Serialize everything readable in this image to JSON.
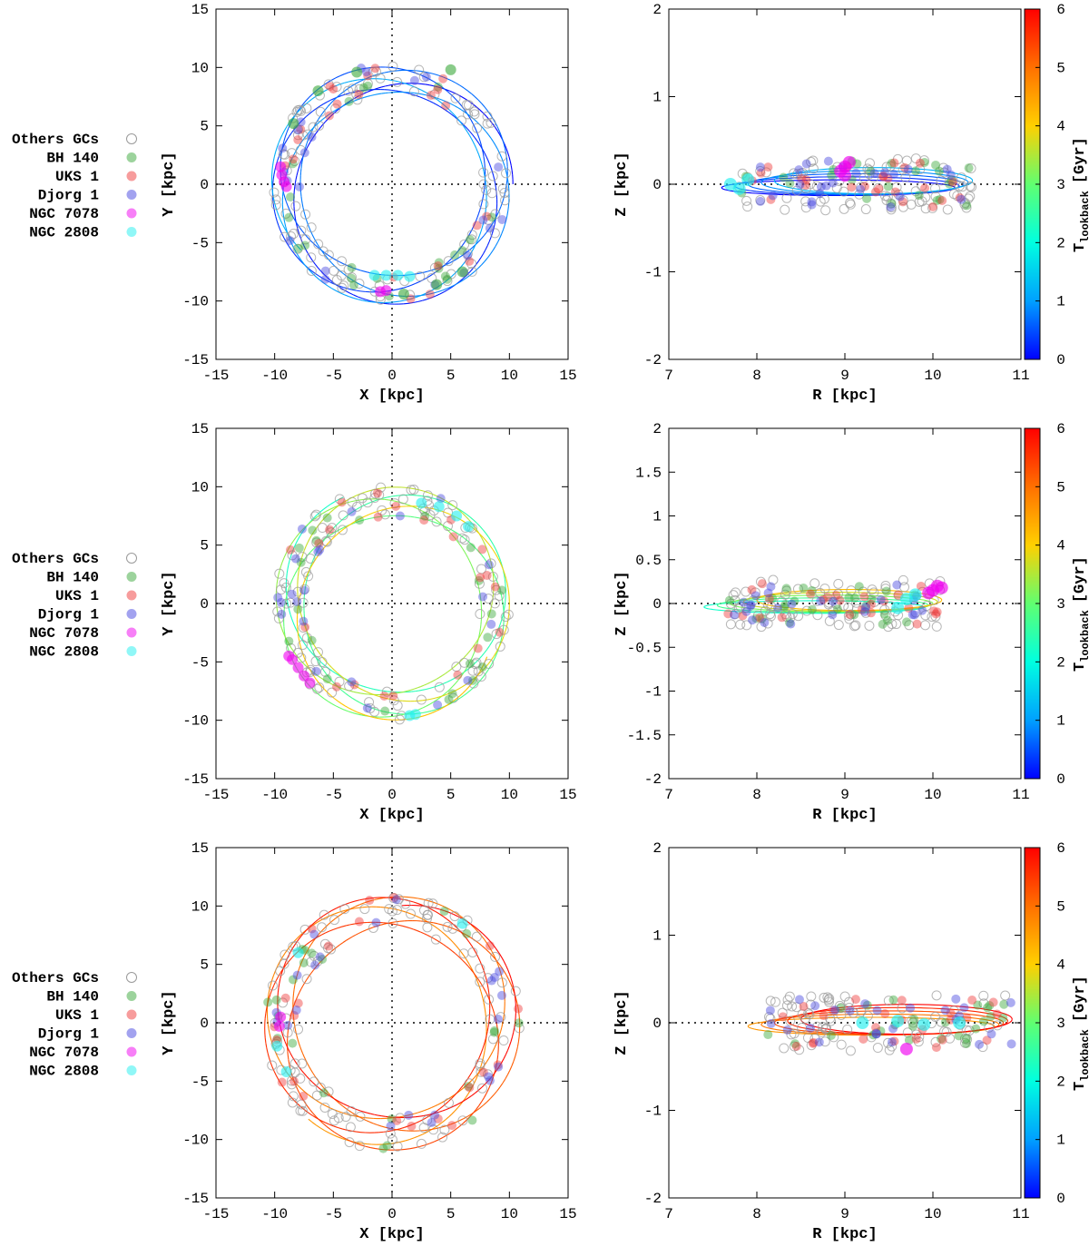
{
  "legend": [
    {
      "label": "Others GCs",
      "color": "#9a9a9a",
      "style": "open"
    },
    {
      "label": "BH 140",
      "color": "#3aa83a"
    },
    {
      "label": "UKS 1",
      "color": "#f03a3a"
    },
    {
      "label": "Djorg 1",
      "color": "#4646e0"
    },
    {
      "label": "NGC 7078",
      "color": "#f000f0"
    },
    {
      "label": "NGC 2808",
      "color": "#22f0f0"
    }
  ],
  "colorbar": {
    "label_main": "T",
    "label_sub": "lookback",
    "label_unit": "[Gyr]",
    "range": [
      0,
      6
    ],
    "ticks": [
      "0",
      "1",
      "2",
      "3",
      "4",
      "5",
      "6"
    ],
    "colors": [
      "#0000ff",
      "#00a0ff",
      "#00ffe0",
      "#60ff70",
      "#ffd000",
      "#ff7000",
      "#ff0000"
    ]
  },
  "chart_data": [
    {
      "type": "scatter",
      "panel": "xy",
      "row": 1,
      "title": "",
      "xlabel": "X [kpc]",
      "ylabel": "Y [kpc]",
      "xlim": [
        -15,
        15
      ],
      "ylim": [
        -15,
        15
      ],
      "xticks": [
        "-15",
        "-10",
        "-5",
        "0",
        "5",
        "10",
        "15"
      ],
      "yticks": [
        "-15",
        "-10",
        "-5",
        "0",
        "5",
        "10",
        "15"
      ],
      "orbit_tlookback": [
        0,
        1.2
      ],
      "orbit_radius_range": [
        7.8,
        10.3
      ],
      "clusters": [
        {
          "name": "NGC 7078",
          "points": [
            [
              -9.4,
              0.8
            ],
            [
              -9.5,
              1.5
            ],
            [
              -9.2,
              0.2
            ],
            [
              -9.0,
              -0.2
            ],
            [
              -1.0,
              -9.2
            ],
            [
              -0.5,
              -9.1
            ]
          ]
        },
        {
          "name": "NGC 2808",
          "points": [
            [
              -0.5,
              -7.8
            ],
            [
              0.5,
              -7.8
            ],
            [
              1.5,
              -7.9
            ],
            [
              -1.5,
              -7.8
            ]
          ]
        },
        {
          "name": "BH 140",
          "points": [
            [
              -8.4,
              5.2
            ],
            [
              -6.3,
              8.0
            ],
            [
              -3.0,
              9.6
            ],
            [
              5.0,
              9.8
            ],
            [
              1.0,
              -9.4
            ],
            [
              3.8,
              -8.6
            ],
            [
              6.0,
              -7.5
            ]
          ]
        }
      ]
    },
    {
      "type": "scatter",
      "panel": "rz",
      "row": 1,
      "title": "",
      "xlabel": "R [kpc]",
      "ylabel": "Z [kpc]",
      "xlim": [
        7,
        11
      ],
      "ylim": [
        -2,
        2
      ],
      "xticks": [
        "7",
        "8",
        "9",
        "10",
        "11"
      ],
      "yticks": [
        "-2",
        "-1",
        "0",
        "1",
        "2"
      ],
      "orbit_r_range": [
        7.8,
        10.45
      ],
      "orbit_z_amplitude": 0.15,
      "clusters": [
        {
          "name": "NGC 7078",
          "points": [
            [
              9.0,
              0.2
            ],
            [
              9.05,
              0.25
            ],
            [
              8.95,
              0.15
            ],
            [
              9.0,
              0.1
            ]
          ]
        },
        {
          "name": "NGC 2808",
          "points": [
            [
              7.7,
              0.0
            ],
            [
              7.8,
              -0.05
            ],
            [
              7.9,
              0.05
            ]
          ]
        }
      ]
    },
    {
      "type": "scatter",
      "panel": "xy",
      "row": 2,
      "title": "",
      "xlabel": "X [kpc]",
      "ylabel": "Y [kpc]",
      "xlim": [
        -15,
        15
      ],
      "ylim": [
        -15,
        15
      ],
      "xticks": [
        "-15",
        "-10",
        "-5",
        "0",
        "5",
        "10",
        "15"
      ],
      "yticks": [
        "-15",
        "-10",
        "-5",
        "0",
        "5",
        "10",
        "15"
      ],
      "orbit_tlookback": [
        2.2,
        4.2
      ],
      "orbit_radius_range": [
        7.5,
        10.0
      ],
      "clusters": [
        {
          "name": "NGC 7078",
          "points": [
            [
              -8.5,
              -4.8
            ],
            [
              -8.0,
              -5.5
            ],
            [
              -7.5,
              -6.2
            ],
            [
              -7.0,
              -6.8
            ],
            [
              -8.8,
              -4.5
            ]
          ]
        },
        {
          "name": "NGC 2808",
          "points": [
            [
              2.5,
              8.6
            ],
            [
              4.0,
              8.3
            ],
            [
              5.5,
              7.5
            ],
            [
              6.5,
              6.6
            ],
            [
              1.5,
              -9.6
            ],
            [
              2.0,
              -9.5
            ]
          ]
        }
      ]
    },
    {
      "type": "scatter",
      "panel": "rz",
      "row": 2,
      "title": "",
      "xlabel": "R [kpc]",
      "ylabel": "Z [kpc]",
      "xlim": [
        7,
        11
      ],
      "ylim": [
        -2,
        2
      ],
      "xticks": [
        "7",
        "8",
        "9",
        "10",
        "11"
      ],
      "yticks": [
        "-2",
        "-1.5",
        "-1",
        "-0.5",
        "0",
        "0.5",
        "1",
        "1.5",
        "2"
      ],
      "orbit_r_range": [
        7.6,
        10.1
      ],
      "orbit_z_amplitude": 0.12,
      "clusters": [
        {
          "name": "NGC 7078",
          "points": [
            [
              10.0,
              0.15
            ],
            [
              10.05,
              0.2
            ],
            [
              9.95,
              0.12
            ],
            [
              10.1,
              0.18
            ]
          ]
        },
        {
          "name": "NGC 2808",
          "points": [
            [
              9.7,
              0.05
            ],
            [
              9.8,
              0.1
            ],
            [
              9.6,
              -0.05
            ]
          ]
        }
      ]
    },
    {
      "type": "scatter",
      "panel": "xy",
      "row": 3,
      "title": "",
      "xlabel": "X [kpc]",
      "ylabel": "Y [kpc]",
      "xlim": [
        -15,
        15
      ],
      "ylim": [
        -15,
        15
      ],
      "xticks": [
        "-15",
        "-10",
        "-5",
        "0",
        "5",
        "10",
        "15"
      ],
      "yticks": [
        "-15",
        "-10",
        "-5",
        "0",
        "5",
        "10",
        "15"
      ],
      "orbit_tlookback": [
        4.6,
        6.0
      ],
      "orbit_radius_range": [
        8.0,
        10.9
      ],
      "clusters": [
        {
          "name": "NGC 7078",
          "points": [
            [
              -9.5,
              0.5
            ],
            [
              -9.6,
              -0.3
            ]
          ]
        },
        {
          "name": "NGC 2808",
          "points": [
            [
              -8.0,
              6.0
            ],
            [
              -9.8,
              -2.0
            ],
            [
              -9.0,
              -4.2
            ],
            [
              6.0,
              8.5
            ]
          ]
        }
      ]
    },
    {
      "type": "scatter",
      "panel": "rz",
      "row": 3,
      "title": "",
      "xlabel": "R [kpc]",
      "ylabel": "Z [kpc]",
      "xlim": [
        7,
        11
      ],
      "ylim": [
        -2,
        2
      ],
      "xticks": [
        "7",
        "8",
        "9",
        "10",
        "11"
      ],
      "yticks": [
        "-2",
        "-1",
        "0",
        "1",
        "2"
      ],
      "orbit_r_range": [
        8.1,
        10.9
      ],
      "orbit_z_amplitude": 0.17,
      "clusters": [
        {
          "name": "NGC 7078",
          "points": [
            [
              9.7,
              -0.3
            ]
          ]
        },
        {
          "name": "NGC 2808",
          "points": [
            [
              9.2,
              0.0
            ],
            [
              9.6,
              0.02
            ],
            [
              9.9,
              -0.02
            ],
            [
              10.3,
              0.0
            ]
          ]
        }
      ]
    }
  ]
}
